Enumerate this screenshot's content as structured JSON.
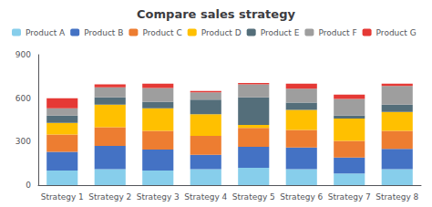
{
  "chart_data": {
    "type": "bar",
    "title": "Compare sales strategy",
    "categories": [
      "Strategy 1",
      "Strategy 2",
      "Strategy 3",
      "Strategy 4",
      "Strategy 5",
      "Strategy 6",
      "Strategy 7",
      "Strategy 8"
    ],
    "series": [
      {
        "name": "Product A",
        "color": "#87CEEB",
        "values": [
          100,
          110,
          100,
          110,
          120,
          110,
          80,
          110
        ]
      },
      {
        "name": "Product B",
        "color": "#4472C4",
        "values": [
          130,
          160,
          145,
          100,
          145,
          150,
          110,
          140
        ]
      },
      {
        "name": "Product C",
        "color": "#ED7D31",
        "values": [
          120,
          130,
          130,
          130,
          130,
          120,
          115,
          125
        ]
      },
      {
        "name": "Product D",
        "color": "#FFC000",
        "values": [
          80,
          155,
          155,
          150,
          20,
          140,
          155,
          130
        ]
      },
      {
        "name": "Product E",
        "color": "#546E7A",
        "values": [
          50,
          50,
          45,
          100,
          190,
          50,
          20,
          50
        ]
      },
      {
        "name": "Product F",
        "color": "#9E9E9E",
        "values": [
          50,
          70,
          95,
          50,
          90,
          95,
          115,
          130
        ]
      },
      {
        "name": "Product G",
        "color": "#E53935",
        "values": [
          70,
          20,
          30,
          10,
          10,
          35,
          30,
          15
        ]
      }
    ],
    "stacked": true,
    "ylim": [
      0,
      900
    ],
    "yticks": [
      0,
      300,
      600,
      900
    ],
    "grid": false,
    "legend": "top"
  }
}
